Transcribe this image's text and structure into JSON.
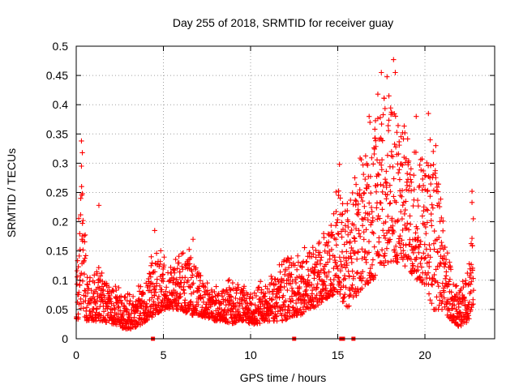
{
  "chart_data": {
    "type": "scatter",
    "title": "Day 255 of 2018, SRMTID for receiver guay",
    "xlabel": "GPS time / hours",
    "ylabel": "SRMTID / TECUs",
    "xlim": [
      0,
      24
    ],
    "ylim": [
      0,
      0.5
    ],
    "x_ticks": [
      0,
      5,
      10,
      15,
      20
    ],
    "x_tick_labels": [
      "0",
      "5",
      "10",
      "15",
      "20"
    ],
    "y_ticks": [
      0,
      0.05,
      0.1,
      0.15,
      0.2,
      0.25,
      0.3,
      0.35,
      0.4,
      0.45,
      0.5
    ],
    "y_tick_labels": [
      "0",
      "0.05",
      "0.1",
      "0.15",
      "0.2",
      "0.25",
      "0.3",
      "0.35",
      "0.4",
      "0.45",
      "0.5"
    ],
    "grid": true,
    "marker": "plus",
    "color": "#ff0000",
    "series": [
      {
        "name": "SRMTID",
        "envelope_hours": [
          0.0,
          0.3,
          0.6,
          1.0,
          1.5,
          2.0,
          2.5,
          3.0,
          3.5,
          4.0,
          4.5,
          5.0,
          5.5,
          6.0,
          6.5,
          7.0,
          7.5,
          8.0,
          8.5,
          9.0,
          9.5,
          10.0,
          10.5,
          11.0,
          11.5,
          12.0,
          12.5,
          13.0,
          13.5,
          14.0,
          14.5,
          15.0,
          15.5,
          16.0,
          16.5,
          17.0,
          17.5,
          18.0,
          18.5,
          19.0,
          19.5,
          20.0,
          20.5,
          21.0,
          21.5,
          22.0,
          22.5,
          22.8
        ],
        "envelope_low": [
          0.03,
          0.04,
          0.03,
          0.03,
          0.03,
          0.025,
          0.02,
          0.015,
          0.02,
          0.03,
          0.04,
          0.05,
          0.05,
          0.05,
          0.04,
          0.04,
          0.035,
          0.03,
          0.03,
          0.025,
          0.03,
          0.025,
          0.025,
          0.03,
          0.03,
          0.03,
          0.04,
          0.04,
          0.05,
          0.06,
          0.07,
          0.08,
          0.05,
          0.07,
          0.09,
          0.1,
          0.12,
          0.13,
          0.13,
          0.12,
          0.1,
          0.09,
          0.05,
          0.05,
          0.03,
          0.02,
          0.03,
          0.05
        ],
        "envelope_high": [
          0.12,
          0.34,
          0.13,
          0.12,
          0.13,
          0.1,
          0.09,
          0.08,
          0.09,
          0.1,
          0.19,
          0.15,
          0.14,
          0.15,
          0.17,
          0.12,
          0.1,
          0.09,
          0.1,
          0.12,
          0.1,
          0.08,
          0.1,
          0.1,
          0.12,
          0.17,
          0.14,
          0.16,
          0.17,
          0.18,
          0.2,
          0.3,
          0.24,
          0.3,
          0.35,
          0.4,
          0.45,
          0.47,
          0.43,
          0.39,
          0.37,
          0.35,
          0.39,
          0.23,
          0.13,
          0.1,
          0.12,
          0.25
        ],
        "outliers": [
          {
            "x": 0.3,
            "y": 0.338
          },
          {
            "x": 0.35,
            "y": 0.318
          },
          {
            "x": 0.3,
            "y": 0.295
          },
          {
            "x": 0.35,
            "y": 0.248
          },
          {
            "x": 1.3,
            "y": 0.228
          },
          {
            "x": 4.5,
            "y": 0.185
          },
          {
            "x": 6.7,
            "y": 0.17
          },
          {
            "x": 15.1,
            "y": 0.298
          },
          {
            "x": 16.8,
            "y": 0.38
          },
          {
            "x": 17.3,
            "y": 0.418
          },
          {
            "x": 17.5,
            "y": 0.455
          },
          {
            "x": 18.2,
            "y": 0.477
          },
          {
            "x": 18.3,
            "y": 0.455
          },
          {
            "x": 19.5,
            "y": 0.38
          },
          {
            "x": 20.2,
            "y": 0.385
          },
          {
            "x": 20.3,
            "y": 0.34
          },
          {
            "x": 22.7,
            "y": 0.252
          },
          {
            "x": 22.7,
            "y": 0.233
          }
        ],
        "zero_points_x": [
          4.4,
          12.5,
          15.2,
          15.3,
          15.9
        ]
      }
    ]
  }
}
